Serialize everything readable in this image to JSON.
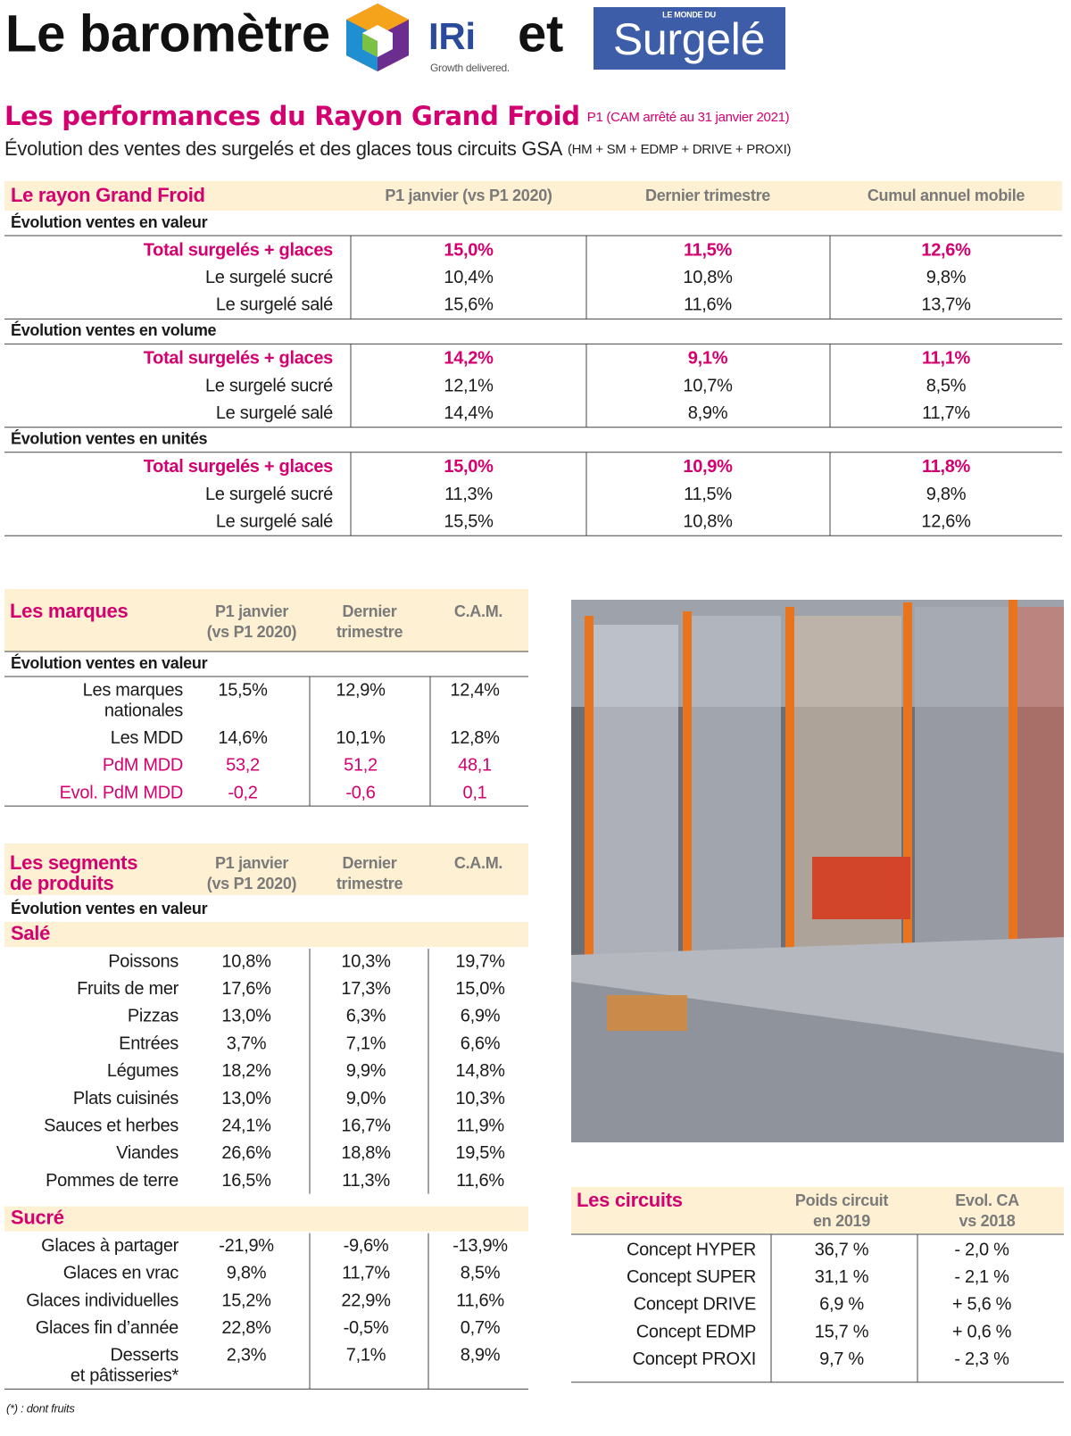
{
  "header": {
    "title": "Le baromètre",
    "connector": "et",
    "iri_logo": {
      "name": "IRi",
      "tagline": "Growth delivered."
    },
    "surgele_logo": {
      "kicker": "LE MONDE DU",
      "name": "Surgelé"
    }
  },
  "section": {
    "title": "Les performances du Rayon Grand Froid",
    "title_note": "P1 (CAM arrêté au 31 janvier 2021)",
    "subtitle": "Évolution des ventes des surgelés et des glaces tous circuits GSA",
    "subtitle_note": "(HM + SM + EDMP + DRIVE + PROXI)"
  },
  "table_main": {
    "header": [
      "Le rayon Grand Froid",
      "P1 janvier (vs P1 2020)",
      "Dernier trimestre",
      "Cumul annuel mobile"
    ],
    "groups": [
      {
        "title": "Évolution ventes en valeur",
        "rows": [
          {
            "label": "Total surgelés + glaces",
            "values": [
              "15,0%",
              "11,5%",
              "12,6%"
            ]
          },
          {
            "label": "Le surgelé sucré",
            "values": [
              "10,4%",
              "10,8%",
              "9,8%"
            ]
          },
          {
            "label": "Le surgelé salé",
            "values": [
              "15,6%",
              "11,6%",
              "13,7%"
            ]
          }
        ]
      },
      {
        "title": "Évolution ventes en volume",
        "rows": [
          {
            "label": "Total surgelés + glaces",
            "values": [
              "14,2%",
              "9,1%",
              "11,1%"
            ]
          },
          {
            "label": "Le surgelé sucré",
            "values": [
              "12,1%",
              "10,7%",
              "8,5%"
            ]
          },
          {
            "label": "Le surgelé salé",
            "values": [
              "14,4%",
              "8,9%",
              "11,7%"
            ]
          }
        ]
      },
      {
        "title": "Évolution ventes en unités",
        "rows": [
          {
            "label": "Total surgelés + glaces",
            "values": [
              "15,0%",
              "10,9%",
              "11,8%"
            ]
          },
          {
            "label": "Le surgelé sucré",
            "values": [
              "11,3%",
              "11,5%",
              "9,8%"
            ]
          },
          {
            "label": "Le surgelé salé",
            "values": [
              "15,5%",
              "10,8%",
              "12,6%"
            ]
          }
        ]
      }
    ]
  },
  "table_brands": {
    "header": [
      [
        "Les marques"
      ],
      [
        "P1 janvier",
        "(vs P1 2020)"
      ],
      [
        "Dernier",
        "trimestre"
      ],
      [
        "C.A.M."
      ]
    ],
    "group_title": "Évolution ventes en valeur",
    "rows": [
      {
        "label": [
          "Les marques",
          "nationales"
        ],
        "values": [
          "15,5%",
          "12,9%",
          "12,4%"
        ]
      },
      {
        "label": [
          "Les MDD"
        ],
        "values": [
          "14,6%",
          "10,1%",
          "12,8%"
        ]
      },
      {
        "label": [
          "PdM MDD"
        ],
        "values": [
          "53,2",
          "51,2",
          "48,1"
        ]
      },
      {
        "label": [
          "Evol. PdM MDD"
        ],
        "values": [
          "-0,2",
          "-0,6",
          "0,1"
        ]
      }
    ]
  },
  "table_segments": {
    "header": [
      [
        "Les segments",
        "de produits"
      ],
      [
        "P1 janvier",
        "(vs P1 2020)"
      ],
      [
        "Dernier",
        "trimestre"
      ],
      [
        "C.A.M."
      ]
    ],
    "group_title": "Évolution ventes en valeur",
    "groups": [
      {
        "title": "Salé",
        "rows": [
          {
            "label": [
              "Poissons"
            ],
            "values": [
              "10,8%",
              "10,3%",
              "19,7%"
            ]
          },
          {
            "label": [
              "Fruits de mer"
            ],
            "values": [
              "17,6%",
              "17,3%",
              "15,0%"
            ]
          },
          {
            "label": [
              "Pizzas"
            ],
            "values": [
              "13,0%",
              "6,3%",
              "6,9%"
            ]
          },
          {
            "label": [
              "Entrées"
            ],
            "values": [
              "3,7%",
              "7,1%",
              "6,6%"
            ]
          },
          {
            "label": [
              "Légumes"
            ],
            "values": [
              "18,2%",
              "9,9%",
              "14,8%"
            ]
          },
          {
            "label": [
              "Plats cuisinés"
            ],
            "values": [
              "13,0%",
              "9,0%",
              "10,3%"
            ]
          },
          {
            "label": [
              "Sauces et herbes"
            ],
            "values": [
              "24,1%",
              "16,7%",
              "11,9%"
            ]
          },
          {
            "label": [
              "Viandes"
            ],
            "values": [
              "26,6%",
              "18,8%",
              "19,5%"
            ]
          },
          {
            "label": [
              "Pommes de terre"
            ],
            "values": [
              "16,5%",
              "11,3%",
              "11,6%"
            ]
          }
        ]
      },
      {
        "title": "Sucré",
        "rows": [
          {
            "label": [
              "Glaces à partager"
            ],
            "values": [
              "-21,9%",
              "-9,6%",
              "-13,9%"
            ]
          },
          {
            "label": [
              "Glaces en vrac"
            ],
            "values": [
              "9,8%",
              "11,7%",
              "8,5%"
            ]
          },
          {
            "label": [
              "Glaces individuelles"
            ],
            "values": [
              "15,2%",
              "22,9%",
              "11,6%"
            ]
          },
          {
            "label": [
              "Glaces fin d’année"
            ],
            "values": [
              "22,8%",
              "-0,5%",
              "0,7%"
            ]
          },
          {
            "label": [
              "Desserts",
              "et pâtisseries*"
            ],
            "values": [
              "2,3%",
              "7,1%",
              "8,9%"
            ]
          }
        ]
      }
    ],
    "footnote": "(*) : dont fruits"
  },
  "table_circuits": {
    "header": [
      [
        "Les circuits"
      ],
      [
        "Poids circuit",
        "en 2019"
      ],
      [
        "Evol. CA",
        "vs 2018"
      ]
    ],
    "rows": [
      {
        "label": [
          "Concept HYPER"
        ],
        "values": [
          "36,7 %",
          "- 2,0 %"
        ]
      },
      {
        "label": [
          "Concept SUPER"
        ],
        "values": [
          "31,1 %",
          "- 2,1 %"
        ]
      },
      {
        "label": [
          "Concept DRIVE"
        ],
        "values": [
          "6,9 %",
          "+ 5,6 %"
        ]
      },
      {
        "label": [
          "Concept EDMP"
        ],
        "values": [
          "15,7 %",
          "+ 0,6 %"
        ]
      },
      {
        "label": [
          "Concept PROXI"
        ],
        "values": [
          "9,7 %",
          "- 2,3 %"
        ]
      }
    ]
  }
}
